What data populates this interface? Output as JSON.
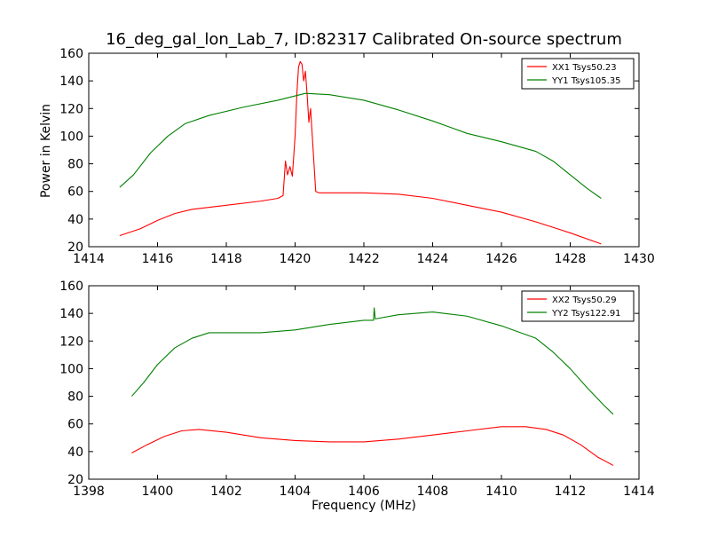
{
  "chart_data": [
    {
      "type": "line",
      "title": "16_deg_gal_lon_Lab_7, ID:82317 Calibrated On-source spectrum",
      "xlabel": "",
      "ylabel": "Power in Kelvin",
      "xlim": [
        1414,
        1430
      ],
      "ylim": [
        20,
        160
      ],
      "xticks": [
        1414,
        1416,
        1418,
        1420,
        1422,
        1424,
        1426,
        1428,
        1430
      ],
      "yticks": [
        20,
        40,
        60,
        80,
        100,
        120,
        140,
        160
      ],
      "legend_position": "top-right",
      "series": [
        {
          "name": "XX1 Tsys50.23",
          "color": "#ff0000",
          "x": [
            1414.9,
            1415.5,
            1416.0,
            1416.5,
            1417.0,
            1418.0,
            1419.0,
            1419.5,
            1419.65,
            1419.72,
            1419.78,
            1419.85,
            1419.92,
            1420.0,
            1420.05,
            1420.1,
            1420.15,
            1420.2,
            1420.25,
            1420.3,
            1420.35,
            1420.4,
            1420.45,
            1420.5,
            1420.55,
            1420.6,
            1420.7,
            1421.0,
            1422.0,
            1423.0,
            1424.0,
            1425.0,
            1426.0,
            1427.0,
            1428.0,
            1428.9
          ],
          "y": [
            28,
            33,
            39,
            44,
            47,
            50,
            53,
            55,
            57,
            82,
            72,
            78,
            71,
            100,
            130,
            150,
            154,
            152,
            140,
            147,
            130,
            110,
            120,
            100,
            80,
            60,
            59,
            59,
            59,
            58,
            55,
            50,
            45,
            38,
            30,
            22
          ]
        },
        {
          "name": "YY1 Tsys105.35",
          "color": "#008000",
          "x": [
            1414.9,
            1415.3,
            1415.8,
            1416.3,
            1416.8,
            1417.5,
            1418.5,
            1419.5,
            1420.3,
            1421.0,
            1422.0,
            1423.0,
            1424.0,
            1425.0,
            1426.0,
            1427.0,
            1427.5,
            1428.0,
            1428.5,
            1428.9
          ],
          "y": [
            63,
            72,
            88,
            100,
            109,
            115,
            121,
            126,
            131,
            130,
            126,
            119,
            111,
            102,
            96,
            89,
            82,
            72,
            62,
            55
          ]
        }
      ]
    },
    {
      "type": "line",
      "title": "",
      "xlabel": "Frequency (MHz)",
      "ylabel": "",
      "xlim": [
        1398,
        1414
      ],
      "ylim": [
        20,
        160
      ],
      "xticks": [
        1398,
        1400,
        1402,
        1404,
        1406,
        1408,
        1410,
        1412,
        1414
      ],
      "yticks": [
        20,
        40,
        60,
        80,
        100,
        120,
        140,
        160
      ],
      "legend_position": "top-right",
      "series": [
        {
          "name": "XX2 Tsys50.29",
          "color": "#ff0000",
          "x": [
            1399.25,
            1399.7,
            1400.2,
            1400.7,
            1401.2,
            1402.0,
            1403.0,
            1404.0,
            1405.0,
            1406.0,
            1407.0,
            1408.0,
            1409.0,
            1410.0,
            1410.7,
            1411.3,
            1411.8,
            1412.3,
            1412.8,
            1413.25
          ],
          "y": [
            39,
            45,
            51,
            55,
            56,
            54,
            50,
            48,
            47,
            47,
            49,
            52,
            55,
            58,
            58,
            56,
            52,
            45,
            36,
            30
          ]
        },
        {
          "name": "YY2 Tsys122.91",
          "color": "#008000",
          "x": [
            1399.25,
            1399.6,
            1400.0,
            1400.5,
            1401.0,
            1401.5,
            1402.0,
            1403.0,
            1404.0,
            1405.0,
            1406.0,
            1406.28,
            1406.3,
            1406.33,
            1407.0,
            1408.0,
            1409.0,
            1410.0,
            1411.0,
            1411.5,
            1412.0,
            1412.5,
            1413.0,
            1413.25
          ],
          "y": [
            80,
            90,
            103,
            115,
            122,
            126,
            126,
            126,
            128,
            132,
            135,
            135,
            144,
            136,
            139,
            141,
            138,
            131,
            122,
            112,
            100,
            86,
            73,
            67
          ]
        }
      ]
    }
  ]
}
